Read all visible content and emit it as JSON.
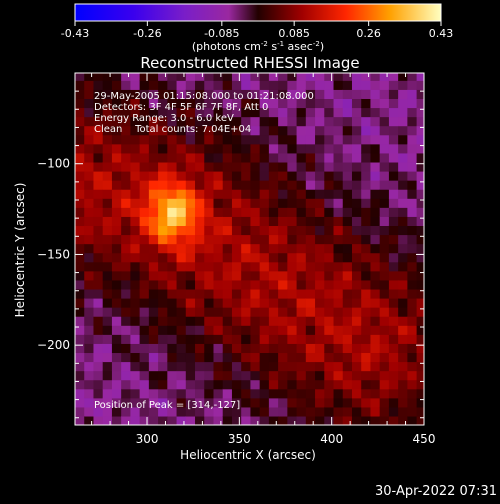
{
  "colorbar": {
    "tick_labels": [
      "-0.43",
      "-0.26",
      "-0.085",
      "0.085",
      "0.26",
      "0.43"
    ],
    "tick_values": [
      -0.43,
      -0.26,
      -0.085,
      0.085,
      0.26,
      0.43
    ],
    "units_main": "(photons cm",
    "units_sup1": "-2",
    "units_mid1": " s",
    "units_sup2": "-1",
    "units_mid2": " asec",
    "units_sup3": "-2",
    "units_end": ")"
  },
  "chart_data": {
    "type": "heatmap",
    "title": "Reconstructed RHESSI Image",
    "xlabel": "Heliocentric X (arcsec)",
    "ylabel": "Heliocentric Y (arcsec)",
    "xlim": [
      261,
      450
    ],
    "ylim": [
      -244,
      -50
    ],
    "x_ticks": [
      300,
      350,
      400,
      450
    ],
    "y_ticks": [
      -100,
      -150,
      -200
    ],
    "x_tick_labels": [
      "300",
      "350",
      "400",
      "450"
    ],
    "y_tick_labels": [
      "−100",
      "−150",
      "−200"
    ],
    "zlim": [
      -0.43,
      0.43
    ],
    "peak": {
      "x": 314,
      "y": -127
    },
    "annotations": [
      "29-May-2005 01:15:08.000 to 01:21:08.000",
      "Detectors: 3F 4F 5F 6F 7F 8F, Att 0",
      "Energy Range: 3.0 - 6.0 keV",
      "Clean    Total counts: 7.04E+04"
    ],
    "peak_annotation": "Position of Peak = [314,-127]"
  },
  "footer": {
    "timestamp": "30-Apr-2022 07:31"
  }
}
